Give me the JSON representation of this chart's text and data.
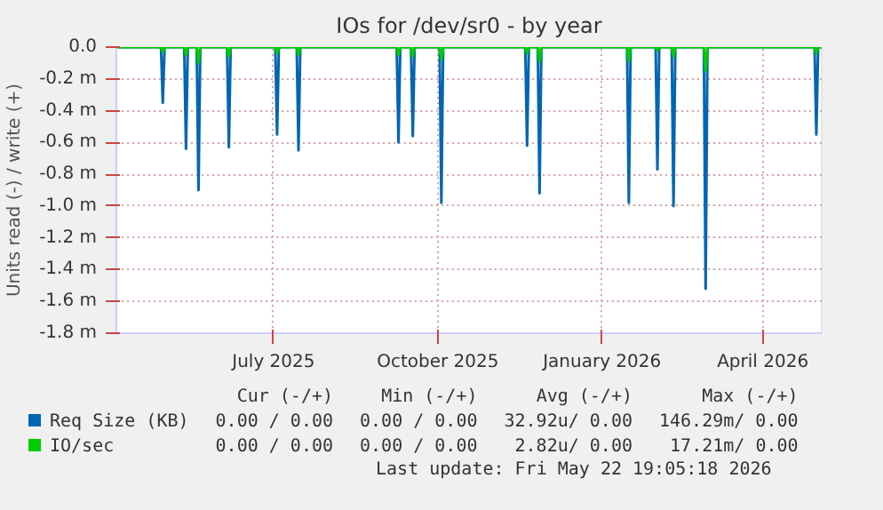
{
  "chart_data": {
    "type": "line",
    "title": "IOs for /dev/sr0 - by year",
    "ylabel": "Units read (-) / write (+)",
    "x": [
      "2025-04-04",
      "2025-04-29",
      "2025-04-30",
      "2025-05-01",
      "2025-05-12",
      "2025-05-13",
      "2025-05-14",
      "2025-05-19",
      "2025-05-20",
      "2025-05-21",
      "2025-06-05",
      "2025-06-06",
      "2025-06-07",
      "2025-07-02",
      "2025-07-03",
      "2025-07-04",
      "2025-07-14",
      "2025-07-15",
      "2025-07-16",
      "2025-09-08",
      "2025-09-09",
      "2025-09-10",
      "2025-09-16",
      "2025-09-17",
      "2025-09-18",
      "2025-10-02",
      "2025-10-03",
      "2025-10-04",
      "2025-11-19",
      "2025-11-20",
      "2025-11-21",
      "2025-11-26",
      "2025-11-27",
      "2025-11-28",
      "2026-01-15",
      "2026-01-16",
      "2026-01-17",
      "2026-01-31",
      "2026-02-01",
      "2026-02-02",
      "2026-02-09",
      "2026-02-10",
      "2026-02-11",
      "2026-02-27",
      "2026-02-28",
      "2026-03-01",
      "2026-04-30",
      "2026-05-01",
      "2026-05-02",
      "2026-05-04"
    ],
    "series": [
      {
        "name": "Req Size (KB)",
        "color": "#0066b3",
        "values": [
          0,
          0,
          -0.35,
          0,
          0,
          -0.64,
          0,
          0,
          -0.9,
          0,
          0,
          -0.63,
          0,
          0,
          -0.55,
          0,
          0,
          -0.65,
          0,
          0,
          -0.6,
          0,
          0,
          -0.56,
          0,
          0,
          -0.98,
          0,
          0,
          -0.62,
          0,
          0,
          -0.92,
          0,
          0,
          -0.98,
          0,
          0,
          -0.77,
          0,
          0,
          -1.0,
          0,
          0,
          -1.52,
          0,
          0,
          -0.55,
          0,
          0
        ]
      },
      {
        "name": "IO/sec",
        "color": "#00cc00",
        "values": [
          0,
          0,
          -0.03,
          0,
          0,
          -0.05,
          0,
          0,
          -0.1,
          0,
          0,
          -0.06,
          0,
          0,
          -0.04,
          0,
          0,
          -0.05,
          0,
          0,
          -0.05,
          0,
          0,
          -0.06,
          0,
          0,
          -0.08,
          0,
          0,
          -0.04,
          0,
          0,
          -0.09,
          0,
          0,
          -0.09,
          0,
          0,
          -0.02,
          0,
          0,
          -0.06,
          0,
          0,
          -0.15,
          0,
          0,
          -0.04,
          0,
          0
        ]
      }
    ],
    "xlim": [
      "2025-04-04",
      "2026-05-04"
    ],
    "xticks": [
      {
        "value": "2025-07-01",
        "label": "July 2025"
      },
      {
        "value": "2025-10-01",
        "label": "October 2025"
      },
      {
        "value": "2026-01-01",
        "label": "January 2026"
      },
      {
        "value": "2026-04-01",
        "label": "April 2026"
      }
    ],
    "ylim": [
      -1.8,
      0
    ],
    "yticks": [
      {
        "value": 0,
        "label": "0.0"
      },
      {
        "value": -0.2,
        "label": "-0.2 m"
      },
      {
        "value": -0.4,
        "label": "-0.4 m"
      },
      {
        "value": -0.6,
        "label": "-0.6 m"
      },
      {
        "value": -0.8,
        "label": "-0.8 m"
      },
      {
        "value": -1.0,
        "label": "-1.0 m"
      },
      {
        "value": -1.2,
        "label": "-1.2 m"
      },
      {
        "value": -1.4,
        "label": "-1.4 m"
      },
      {
        "value": -1.6,
        "label": "-1.6 m"
      },
      {
        "value": -1.8,
        "label": "-1.8 m"
      }
    ],
    "grid": true,
    "legend": "bottom",
    "line_style": "solid",
    "annotations": [
      "Cur (-/+)",
      "Min (-/+)",
      "Avg (-/+)",
      "Max (-/+)",
      "0.00 / 0.00",
      "0.00 / 0.00",
      "32.92u/ 0.00",
      "146.29m/ 0.00",
      "0.00 / 0.00",
      "0.00 / 0.00",
      "2.82u/ 0.00",
      "17.21m/ 0.00",
      "Last update: Fri May 22 19:05:18 2026"
    ]
  }
}
